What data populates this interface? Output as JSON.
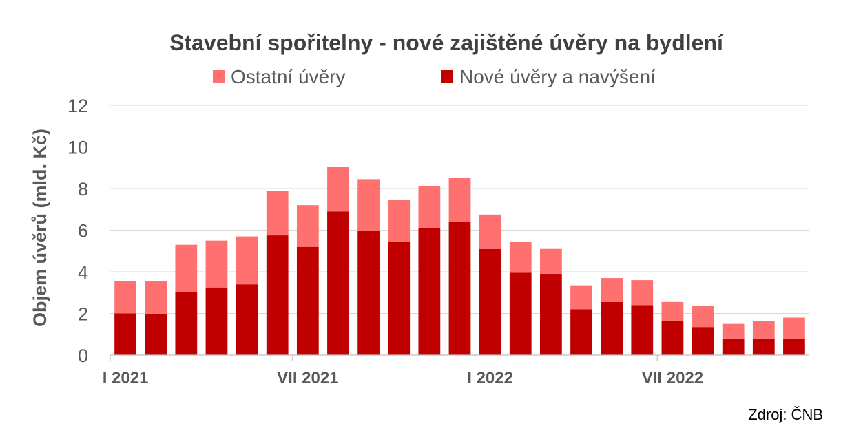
{
  "chart_data": {
    "type": "bar",
    "stacked": true,
    "title": "Stavební spořitelny - nové zajištěné úvěry na bydlení",
    "ylabel": "Objem úvěrů (mld. Kč)",
    "ylim": [
      0,
      12
    ],
    "yticks": [
      0,
      2,
      4,
      6,
      8,
      10,
      12
    ],
    "grid": true,
    "legend_position": "top",
    "categories": [
      "I 2021",
      "",
      "",
      "",
      "",
      "",
      "VII 2021",
      "",
      "",
      "",
      "",
      "",
      "I 2022",
      "",
      "",
      "",
      "",
      "",
      "VII 2022",
      "",
      "",
      "",
      ""
    ],
    "series": [
      {
        "name": "Nové úvěry a navýšení",
        "color": "#C00000",
        "values": [
          2.0,
          1.95,
          3.05,
          3.25,
          3.4,
          5.75,
          5.2,
          6.9,
          5.95,
          5.45,
          6.1,
          6.4,
          5.1,
          3.95,
          3.9,
          2.2,
          2.55,
          2.4,
          1.65,
          1.35,
          0.8,
          0.8,
          0.8
        ]
      },
      {
        "name": "Ostatní úvěry",
        "color": "#FF7070",
        "values": [
          1.55,
          1.6,
          2.25,
          2.25,
          2.3,
          2.15,
          2.0,
          2.15,
          2.5,
          2.0,
          2.0,
          2.1,
          1.65,
          1.5,
          1.2,
          1.15,
          1.15,
          1.2,
          0.9,
          1.0,
          0.7,
          0.85,
          1.0
        ]
      }
    ]
  },
  "source": "Zdroj: ČNB"
}
